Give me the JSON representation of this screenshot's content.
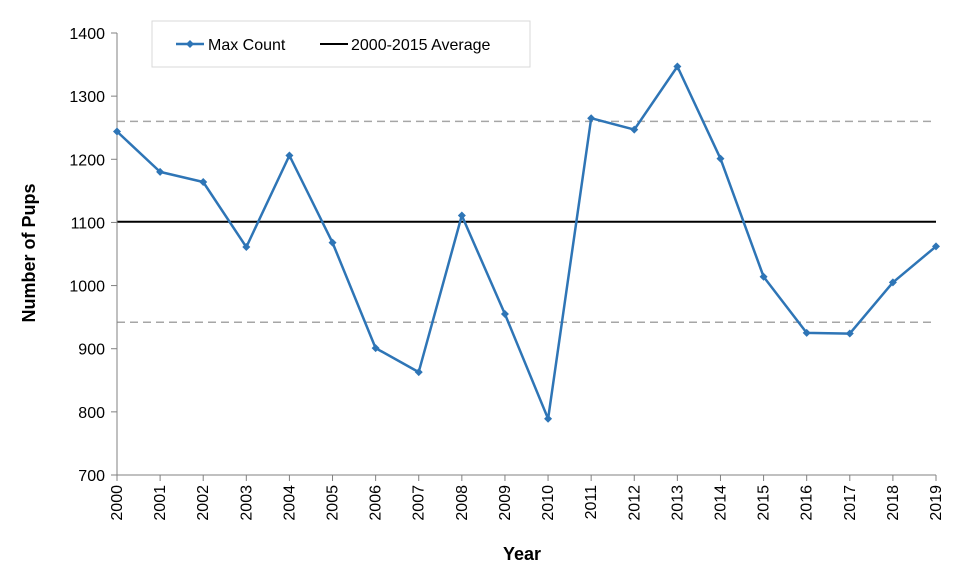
{
  "chart_data": {
    "type": "line",
    "xlabel": "Year",
    "ylabel": "Number of Pups",
    "ylim": [
      700,
      1400
    ],
    "yticks": [
      700,
      800,
      900,
      1000,
      1100,
      1200,
      1300,
      1400
    ],
    "x": [
      "2000",
      "2001",
      "2002",
      "2003",
      "2004",
      "2005",
      "2006",
      "2007",
      "2008",
      "2009",
      "2010",
      "2011",
      "2012",
      "2013",
      "2014",
      "2015",
      "2016",
      "2017",
      "2018",
      "2019"
    ],
    "series": [
      {
        "name": "Max Count",
        "color": "#2e75b6",
        "marker": "diamond",
        "values": [
          1244,
          1180,
          1164,
          1061,
          1206,
          1068,
          901,
          863,
          1111,
          955,
          789,
          1265,
          1247,
          1347,
          1201,
          1014,
          925,
          924,
          1005,
          1062
        ]
      }
    ],
    "reference_lines": [
      {
        "name": "2000-2015 Average",
        "value": 1101,
        "color": "#000000",
        "style": "solid"
      },
      {
        "name": "",
        "value": 1260,
        "color": "#a6a6a6",
        "style": "dashed"
      },
      {
        "name": "",
        "value": 942,
        "color": "#a6a6a6",
        "style": "dashed"
      }
    ],
    "legend": {
      "placement": "top-left",
      "entries": [
        "Max Count",
        "2000-2015 Average"
      ]
    },
    "grid": false
  }
}
